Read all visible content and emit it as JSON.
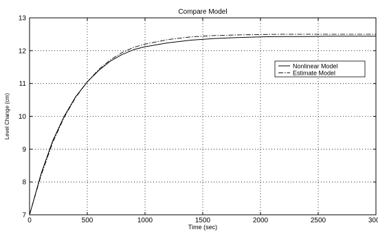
{
  "chart_data": {
    "type": "line",
    "title": "Compare Model",
    "xlabel": "Time (sec)",
    "ylabel": "Level Change (cm)",
    "xlim": [
      0,
      3000
    ],
    "ylim": [
      7,
      13
    ],
    "xticks": [
      0,
      500,
      1000,
      1500,
      2000,
      2500,
      3000
    ],
    "yticks": [
      7,
      8,
      9,
      10,
      11,
      12,
      13
    ],
    "grid": true,
    "grid_style": "dotted",
    "legend_position": "right",
    "series": [
      {
        "name": "Nonlinear Model",
        "line_style": "solid",
        "color": "#000000",
        "x": [
          0,
          100,
          200,
          300,
          400,
          500,
          600,
          700,
          800,
          900,
          1000,
          1200,
          1400,
          1600,
          1800,
          2000,
          2200,
          2400,
          2600,
          2800,
          3000
        ],
        "y": [
          7.0,
          8.25,
          9.25,
          10.0,
          10.6,
          11.05,
          11.4,
          11.68,
          11.88,
          12.03,
          12.12,
          12.24,
          12.32,
          12.37,
          12.4,
          12.42,
          12.43,
          12.43,
          12.44,
          12.44,
          12.44
        ]
      },
      {
        "name": "Estimate Model",
        "line_style": "dashdot",
        "color": "#000000",
        "x": [
          0,
          100,
          200,
          300,
          400,
          500,
          600,
          700,
          800,
          900,
          1000,
          1200,
          1400,
          1600,
          1800,
          2000,
          2200,
          2400,
          2600,
          2800,
          3000
        ],
        "y": [
          7.0,
          8.2,
          9.2,
          9.97,
          10.58,
          11.05,
          11.43,
          11.72,
          11.94,
          12.1,
          12.2,
          12.34,
          12.42,
          12.46,
          12.48,
          12.49,
          12.5,
          12.5,
          12.5,
          12.5,
          12.5
        ]
      }
    ]
  }
}
